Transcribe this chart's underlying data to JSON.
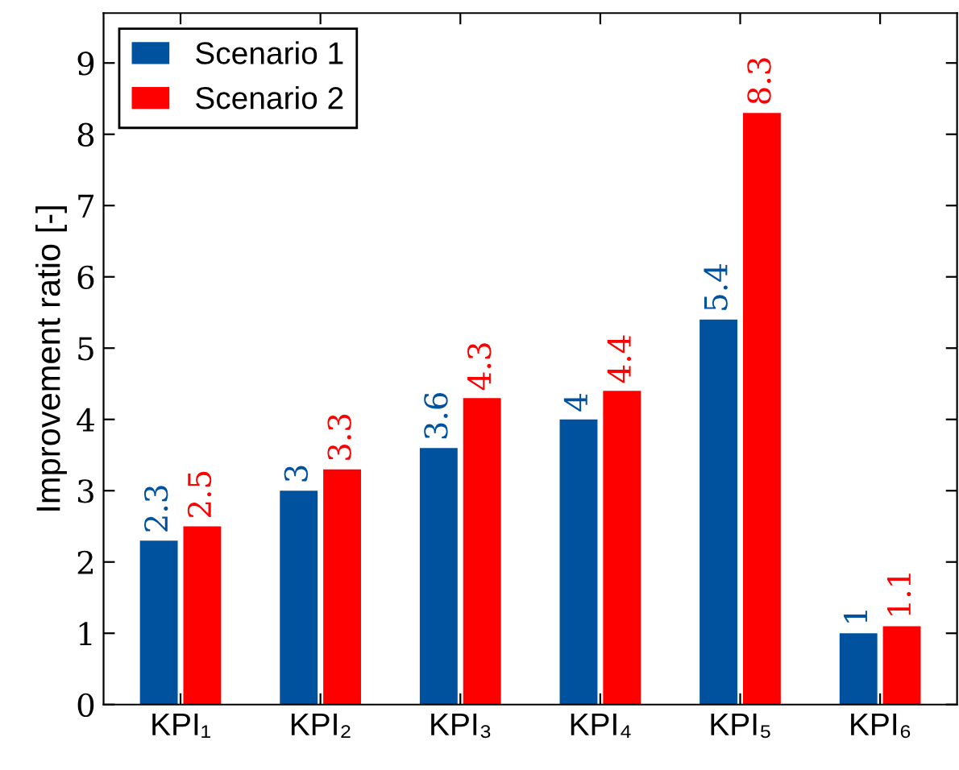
{
  "chart_data": {
    "type": "bar",
    "ylabel": "Improvement ratio [-]",
    "categories": [
      "KPI₁",
      "KPI₂",
      "KPI₃",
      "KPI₄",
      "KPI₅",
      "KPI₆"
    ],
    "series": [
      {
        "name": "Scenario 1",
        "color": "#00519e",
        "values": [
          2.3,
          3,
          3.6,
          4,
          5.4,
          1
        ]
      },
      {
        "name": "Scenario 2",
        "color": "#ff0000",
        "values": [
          2.5,
          3.3,
          4.3,
          4.4,
          8.3,
          1.1
        ]
      }
    ],
    "ylim": [
      0,
      9.7
    ],
    "yticks": [
      0,
      1,
      2,
      3,
      4,
      5,
      6,
      7,
      8,
      9
    ],
    "data_labels": true,
    "legend": "top left",
    "grid": false
  }
}
